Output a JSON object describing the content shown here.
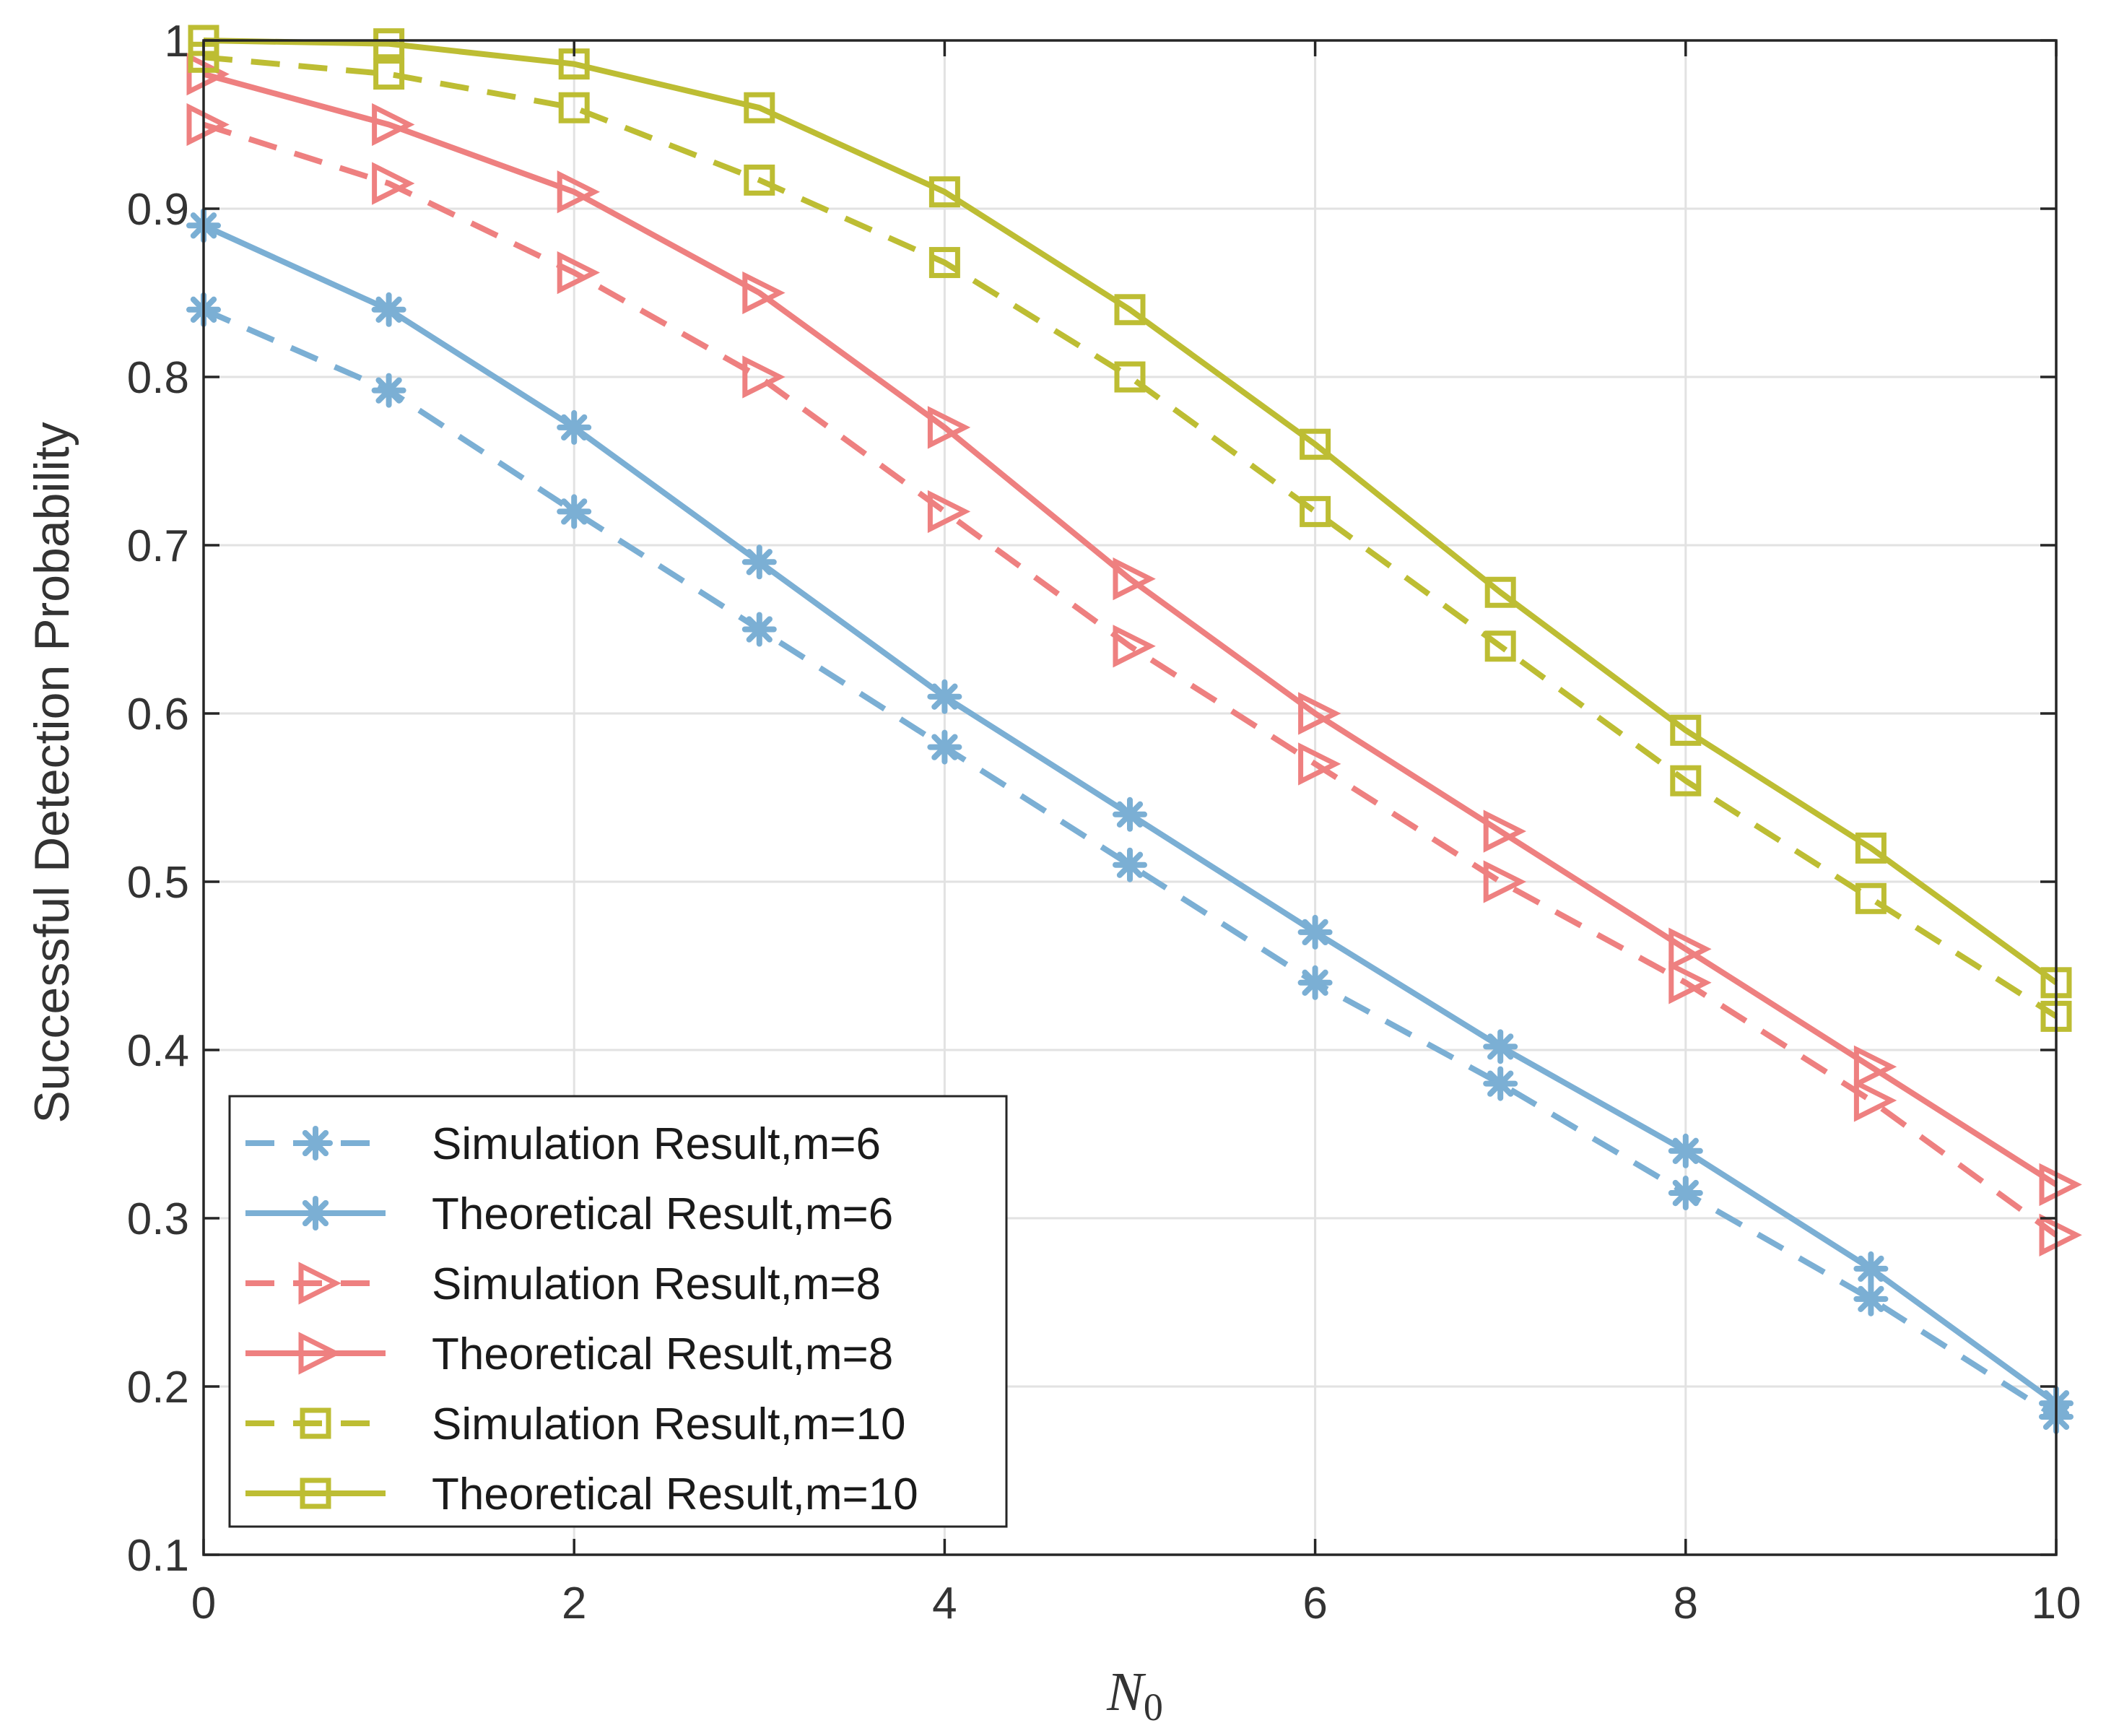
{
  "chart_data": {
    "type": "line",
    "xlabel": "N",
    "xlabel_subscript": "0",
    "ylabel": "Successful Detection Probability",
    "xlim": [
      0,
      10
    ],
    "ylim": [
      0.1,
      1
    ],
    "xticks": [
      0,
      2,
      4,
      6,
      8,
      10
    ],
    "xtick_labels": [
      "0",
      "2",
      "4",
      "6",
      "8",
      "10"
    ],
    "yticks": [
      0.1,
      0.2,
      0.3,
      0.4,
      0.5,
      0.6,
      0.7,
      0.8,
      0.9,
      1
    ],
    "ytick_labels": [
      "0.1",
      "0.2",
      "0.3",
      "0.4",
      "0.5",
      "0.6",
      "0.7",
      "0.8",
      "0.9",
      "1"
    ],
    "grid": true,
    "legend_position": "bottom-left",
    "x": [
      0,
      1,
      2,
      3,
      4,
      5,
      6,
      7,
      8,
      9,
      10
    ],
    "series": [
      {
        "name": "Simulation Result,m=6",
        "color": "#7BAFD4",
        "dash": "dashed",
        "marker": "asterisk",
        "values": [
          0.84,
          0.792,
          0.72,
          0.65,
          0.58,
          0.51,
          0.44,
          0.38,
          0.315,
          0.252,
          0.182
        ]
      },
      {
        "name": "Theoretical Result,m=6",
        "color": "#7BAFD4",
        "dash": "solid",
        "marker": "asterisk",
        "values": [
          0.89,
          0.84,
          0.77,
          0.69,
          0.61,
          0.54,
          0.47,
          0.402,
          0.34,
          0.27,
          0.19
        ]
      },
      {
        "name": "Simulation Result,m=8",
        "color": "#EE8080",
        "dash": "dashed",
        "marker": "triangle-right",
        "values": [
          0.95,
          0.915,
          0.862,
          0.8,
          0.72,
          0.64,
          0.57,
          0.5,
          0.44,
          0.37,
          0.29
        ]
      },
      {
        "name": "Theoretical Result,m=8",
        "color": "#EE8080",
        "dash": "solid",
        "marker": "triangle-right",
        "values": [
          0.98,
          0.95,
          0.91,
          0.85,
          0.77,
          0.68,
          0.6,
          0.53,
          0.46,
          0.39,
          0.32
        ]
      },
      {
        "name": "Simulation Result,m=10",
        "color": "#BDBD33",
        "dash": "dashed",
        "marker": "square",
        "values": [
          0.99,
          0.98,
          0.96,
          0.917,
          0.868,
          0.8,
          0.72,
          0.64,
          0.56,
          0.49,
          0.42
        ]
      },
      {
        "name": "Theoretical Result,m=10",
        "color": "#BDBD33",
        "dash": "solid",
        "marker": "square",
        "values": [
          1.0,
          0.998,
          0.986,
          0.96,
          0.91,
          0.84,
          0.76,
          0.672,
          0.59,
          0.52,
          0.44
        ]
      }
    ]
  }
}
